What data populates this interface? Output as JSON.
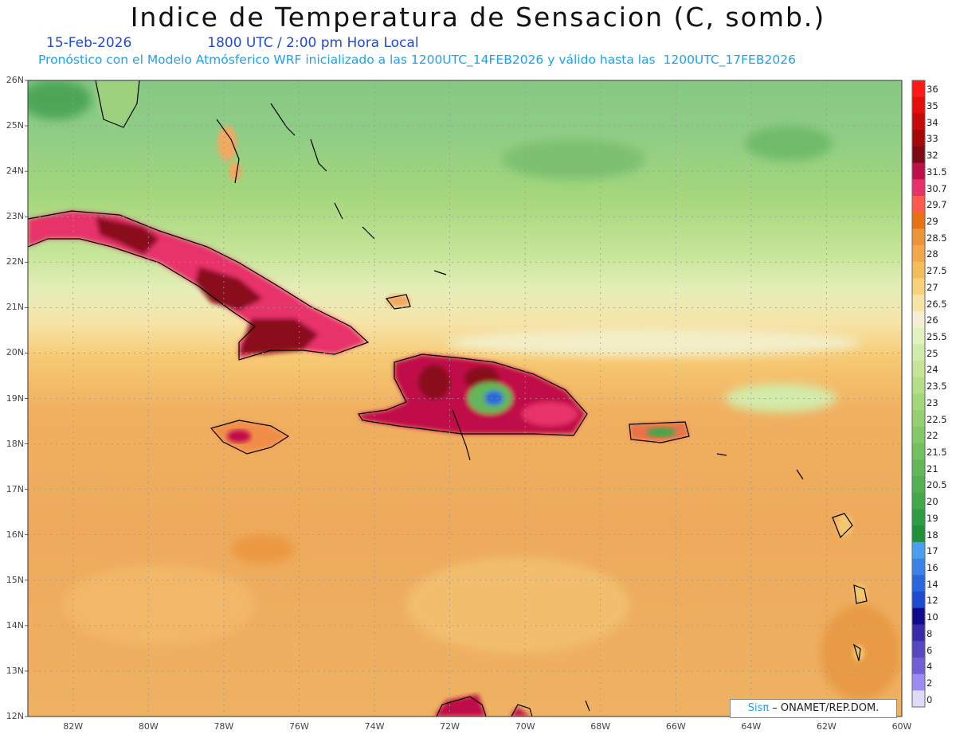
{
  "header": {
    "title": "Indice de Temperatura de Sensacion (C, somb.)",
    "date": "15-Feb-2026",
    "time": "1800 UTC / 2:00 pm Hora Local",
    "model_line": "Pronóstico con el Modelo Atmósferico WRF inicializado a las 1200UTC_14FEB2026 y válido hasta las  1200UTC_17FEB2026"
  },
  "map": {
    "lat_labels": [
      "26N",
      "25N",
      "24N",
      "23N",
      "22N",
      "21N",
      "20N",
      "19N",
      "18N",
      "17N",
      "16N",
      "15N",
      "14N",
      "13N",
      "12N"
    ],
    "lon_labels": [
      "82W",
      "80W",
      "78W",
      "76W",
      "74W",
      "72W",
      "70W",
      "68W",
      "66W",
      "64W",
      "62W",
      "60W"
    ],
    "lat_range": [
      12,
      26
    ],
    "lon_range": [
      -83.2,
      -60
    ],
    "grid": true,
    "colors": {
      "cool_north": "#8fcf8a",
      "mid": "#f3e2a6",
      "warm_sea": "#efb866",
      "hot_land": "#c81e5a",
      "hottest": "#8a0a1e",
      "coastline": "#000000"
    }
  },
  "colorbar": {
    "levels": [
      "36",
      "35",
      "34",
      "33",
      "32",
      "31.5",
      "30.7",
      "29.7",
      "29",
      "28.5",
      "28",
      "27.5",
      "27",
      "26.5",
      "26",
      "25.5",
      "25",
      "24",
      "23.5",
      "23",
      "22.5",
      "22",
      "21.5",
      "21",
      "20.5",
      "20",
      "19",
      "18",
      "17",
      "16",
      "14",
      "12",
      "10",
      "8",
      "6",
      "4",
      "2",
      "0"
    ],
    "colors": [
      "#ff1a1a",
      "#e60d0d",
      "#c40a0a",
      "#a50808",
      "#7c0a14",
      "#c0104a",
      "#e8306a",
      "#ff5a4c",
      "#e87212",
      "#ee9438",
      "#f2a84a",
      "#f5bd5a",
      "#f7d27a",
      "#f7e4a4",
      "#f3efd2",
      "#e3f0c0",
      "#d3ebaa",
      "#c4e598",
      "#b5de88",
      "#a4d67b",
      "#94cf70",
      "#84c868",
      "#73c060",
      "#62b858",
      "#52b050",
      "#42a84a",
      "#2f9c42",
      "#1e903a",
      "#4a9ef0",
      "#3a82e8",
      "#2a66de",
      "#1c4cd0",
      "#120a8c",
      "#3a2aaa",
      "#5646c0",
      "#7060d4",
      "#9a8cf0",
      "#dcdcf8"
    ]
  },
  "credit": {
    "brand": "Sisπ",
    "text": " – ONAMET/REP.DOM."
  }
}
